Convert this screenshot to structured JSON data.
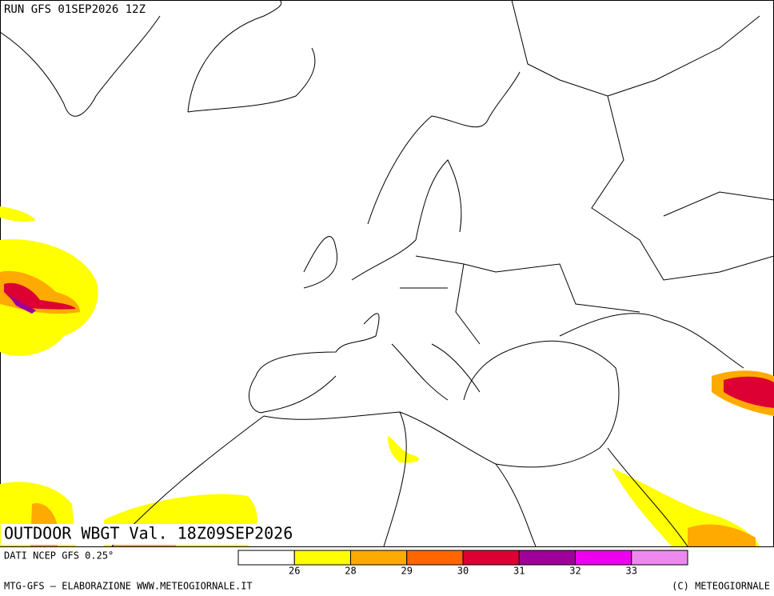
{
  "header": {
    "run": "RUN GFS 01SEP2026 12Z"
  },
  "title": "OUTDOOR WBGT Val. 18Z09SEP2026",
  "source": "DATI NCEP GFS 0.25°",
  "footer": {
    "left": "MTG-GFS – ELABORAZIONE WWW.METEOGIORNALE.IT",
    "right": "(C) METEOGIORNALE"
  },
  "legend": {
    "colors": [
      "#ffffff",
      "#ffff00",
      "#ffaa00",
      "#ff6600",
      "#dd0033",
      "#a0009a",
      "#ee00ee",
      "#ee88ee"
    ],
    "ticks": [
      26,
      28,
      29,
      30,
      31,
      32,
      33
    ]
  }
}
